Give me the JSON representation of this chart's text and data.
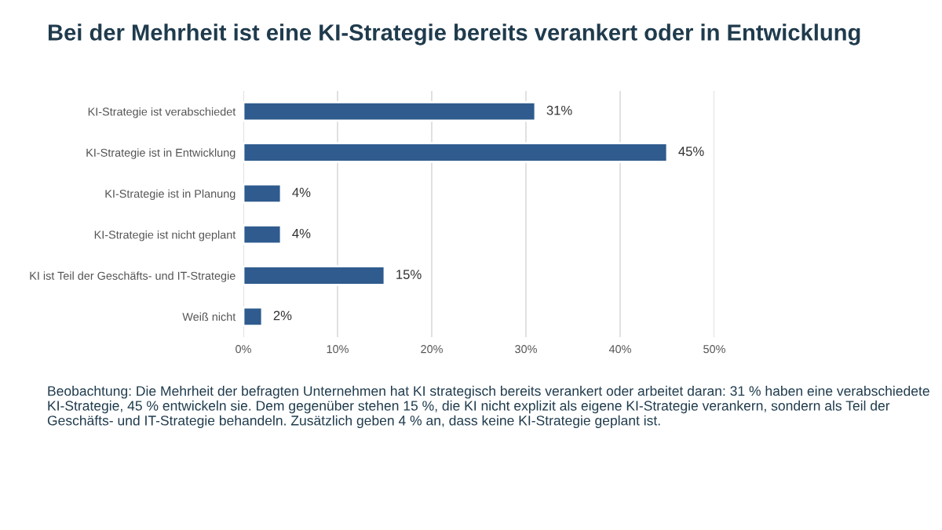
{
  "chart_data": {
    "type": "bar",
    "orientation": "horizontal",
    "title": "Bei der Mehrheit ist eine KI-Strategie bereits verankert oder in Entwicklung",
    "categories": [
      "KI-Strategie ist verabschiedet",
      "KI-Strategie ist in Entwicklung",
      "KI-Strategie ist in Planung",
      "KI-Strategie ist nicht geplant",
      "KI ist Teil der Geschäfts- und IT-Strategie",
      "Weiß nicht"
    ],
    "values": [
      31,
      45,
      4,
      4,
      15,
      2
    ],
    "value_labels": [
      "31%",
      "45%",
      "4%",
      "4%",
      "15%",
      "2%"
    ],
    "color": "#2f5b8e",
    "xlim": [
      0,
      50
    ],
    "xticks": [
      {
        "value": 0,
        "label": "0%"
      },
      {
        "value": 10,
        "label": "10%"
      },
      {
        "value": 20,
        "label": "20%"
      },
      {
        "value": 30,
        "label": "30%"
      },
      {
        "value": 40,
        "label": "40%"
      },
      {
        "value": 50,
        "label": "50%"
      }
    ],
    "grid": "x",
    "annotations": [
      "Beobachtung: Die Mehrheit der befragten Unternehmen hat KI strategisch bereits verankert oder arbeitet daran: 31 % haben eine verabschiedete KI-Strategie, 45 % entwickeln sie. Dem gegenüber stehen 15 %, die KI nicht explizit als eigene KI-Strategie verankern, sondern als Teil der Geschäfts- und IT-Strategie behandeln. Zusätzlich geben 4 % an, dass keine KI-Strategie geplant ist."
    ]
  }
}
